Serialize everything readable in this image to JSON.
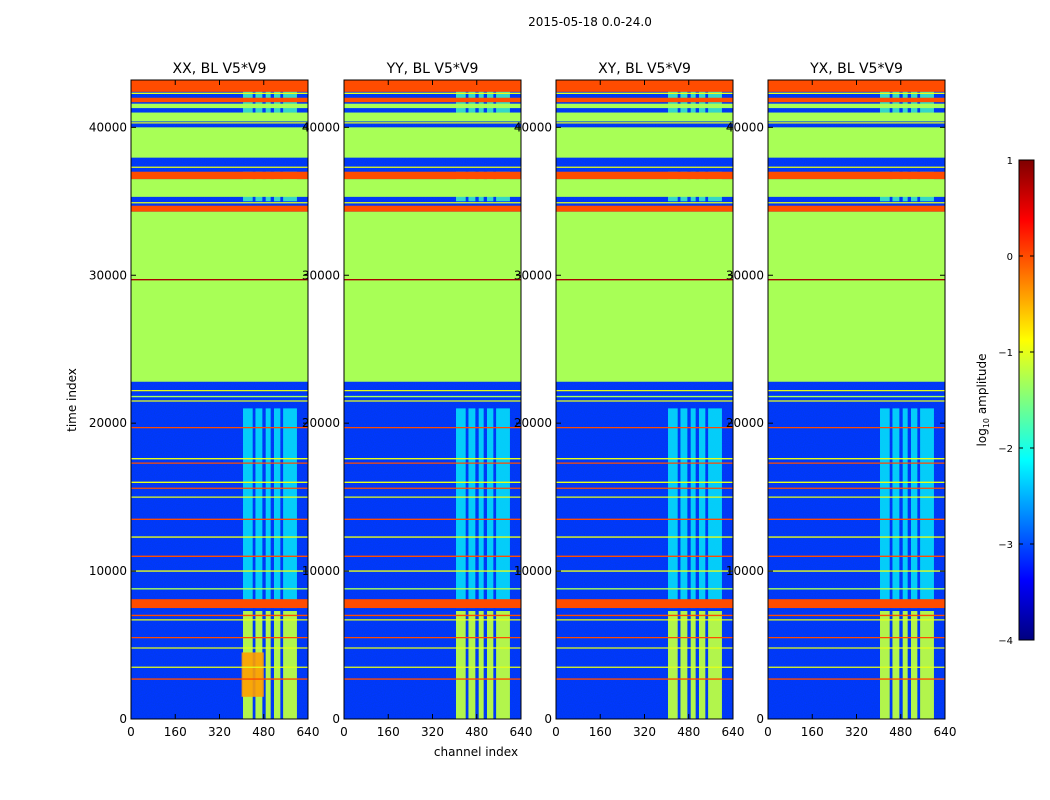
{
  "figure_title": "2015-05-18 0.0-24.0",
  "chart_data": {
    "type": "heatmap",
    "title": "2015-05-18 0.0-24.0",
    "xlabel": "channel index",
    "ylabel": "time index",
    "xlim": [
      0,
      640
    ],
    "ylim": [
      0,
      43200
    ],
    "x_ticks": [
      0,
      160,
      320,
      480,
      640
    ],
    "y_ticks": [
      0,
      10000,
      20000,
      30000,
      40000
    ],
    "x_tick_labels": [
      "0",
      "160",
      "320",
      "480",
      "640"
    ],
    "y_tick_labels": [
      "0",
      "10000",
      "20000",
      "30000",
      "40000"
    ],
    "colorbar": {
      "label": "log10 amplitude",
      "label_main": "log",
      "label_sub": "10",
      "label_rest": " amplitude",
      "range": [
        -4,
        1
      ],
      "ticks": [
        1,
        0,
        -1,
        -2,
        -3,
        -4
      ],
      "tick_labels": [
        "1",
        "0",
        "−1",
        "−2",
        "−3",
        "−4"
      ],
      "colormap": [
        "#00007f",
        "#0000ff",
        "#007fff",
        "#00ffff",
        "#7fff7f",
        "#ffff00",
        "#ff7f00",
        "#ff0000",
        "#7f0000"
      ]
    },
    "panels": [
      {
        "title": "XX, BL V5*V9",
        "active_channels": [
          [
            405,
            440
          ],
          [
            450,
            475
          ],
          [
            487,
            505
          ],
          [
            517,
            540
          ],
          [
            550,
            600
          ]
        ]
      },
      {
        "title": "YY, BL V5*V9",
        "active_channels": [
          [
            405,
            440
          ],
          [
            450,
            475
          ],
          [
            487,
            505
          ],
          [
            517,
            540
          ],
          [
            550,
            600
          ]
        ]
      },
      {
        "title": "XY, BL V5*V9",
        "active_channels": [
          [
            405,
            440
          ],
          [
            450,
            475
          ],
          [
            487,
            505
          ],
          [
            517,
            540
          ],
          [
            550,
            600
          ]
        ]
      },
      {
        "title": "YX, BL V5*V9",
        "active_channels": [
          [
            405,
            440
          ],
          [
            450,
            475
          ],
          [
            487,
            505
          ],
          [
            517,
            540
          ],
          [
            550,
            600
          ]
        ]
      }
    ],
    "background_level": -3.1,
    "flagged_blocks": [
      {
        "start": 22800,
        "end": 34300,
        "level": -1.3
      },
      {
        "start": 35300,
        "end": 36500,
        "level": -1.3
      },
      {
        "start": 36500,
        "end": 37000,
        "level": 0.0
      },
      {
        "start": 37950,
        "end": 40000,
        "level": -1.3
      },
      {
        "start": 40400,
        "end": 41000,
        "level": -1.3
      },
      {
        "start": 7500,
        "end": 8100,
        "level": 0.0
      },
      {
        "start": 34300,
        "end": 34700,
        "level": 0.0
      },
      {
        "start": 42400,
        "end": 43200,
        "level": 0.0
      },
      {
        "start": 41300,
        "end": 41600,
        "level": -1.3
      },
      {
        "start": 41700,
        "end": 42000,
        "level": 0.0
      }
    ],
    "horizontal_lines": [
      {
        "t": 29700,
        "level": 0.8
      },
      {
        "t": 19700,
        "level": 0.0
      },
      {
        "t": 17600,
        "level": -1.0
      },
      {
        "t": 17300,
        "level": 0.0
      },
      {
        "t": 16000,
        "level": -1.0
      },
      {
        "t": 15600,
        "level": 0.0
      },
      {
        "t": 15000,
        "level": -1.0
      },
      {
        "t": 13500,
        "level": 0.0
      },
      {
        "t": 12300,
        "level": -1.0
      },
      {
        "t": 11000,
        "level": 0.0
      },
      {
        "t": 10000,
        "level": -1.0
      },
      {
        "t": 8800,
        "level": -1.3
      },
      {
        "t": 7000,
        "level": 0.0
      },
      {
        "t": 6700,
        "level": -1.0
      },
      {
        "t": 5500,
        "level": 0.0
      },
      {
        "t": 4800,
        "level": -1.0
      },
      {
        "t": 3500,
        "level": -1.0
      },
      {
        "t": 2700,
        "level": 0.0
      },
      {
        "t": 21500,
        "level": -1.0
      },
      {
        "t": 21800,
        "level": -1.3
      },
      {
        "t": 22200,
        "level": -1.0
      },
      {
        "t": 34900,
        "level": -1.0
      },
      {
        "t": 37300,
        "level": -1.0
      },
      {
        "t": 40300,
        "level": -1.0
      },
      {
        "t": 42300,
        "level": -1.0
      }
    ]
  }
}
